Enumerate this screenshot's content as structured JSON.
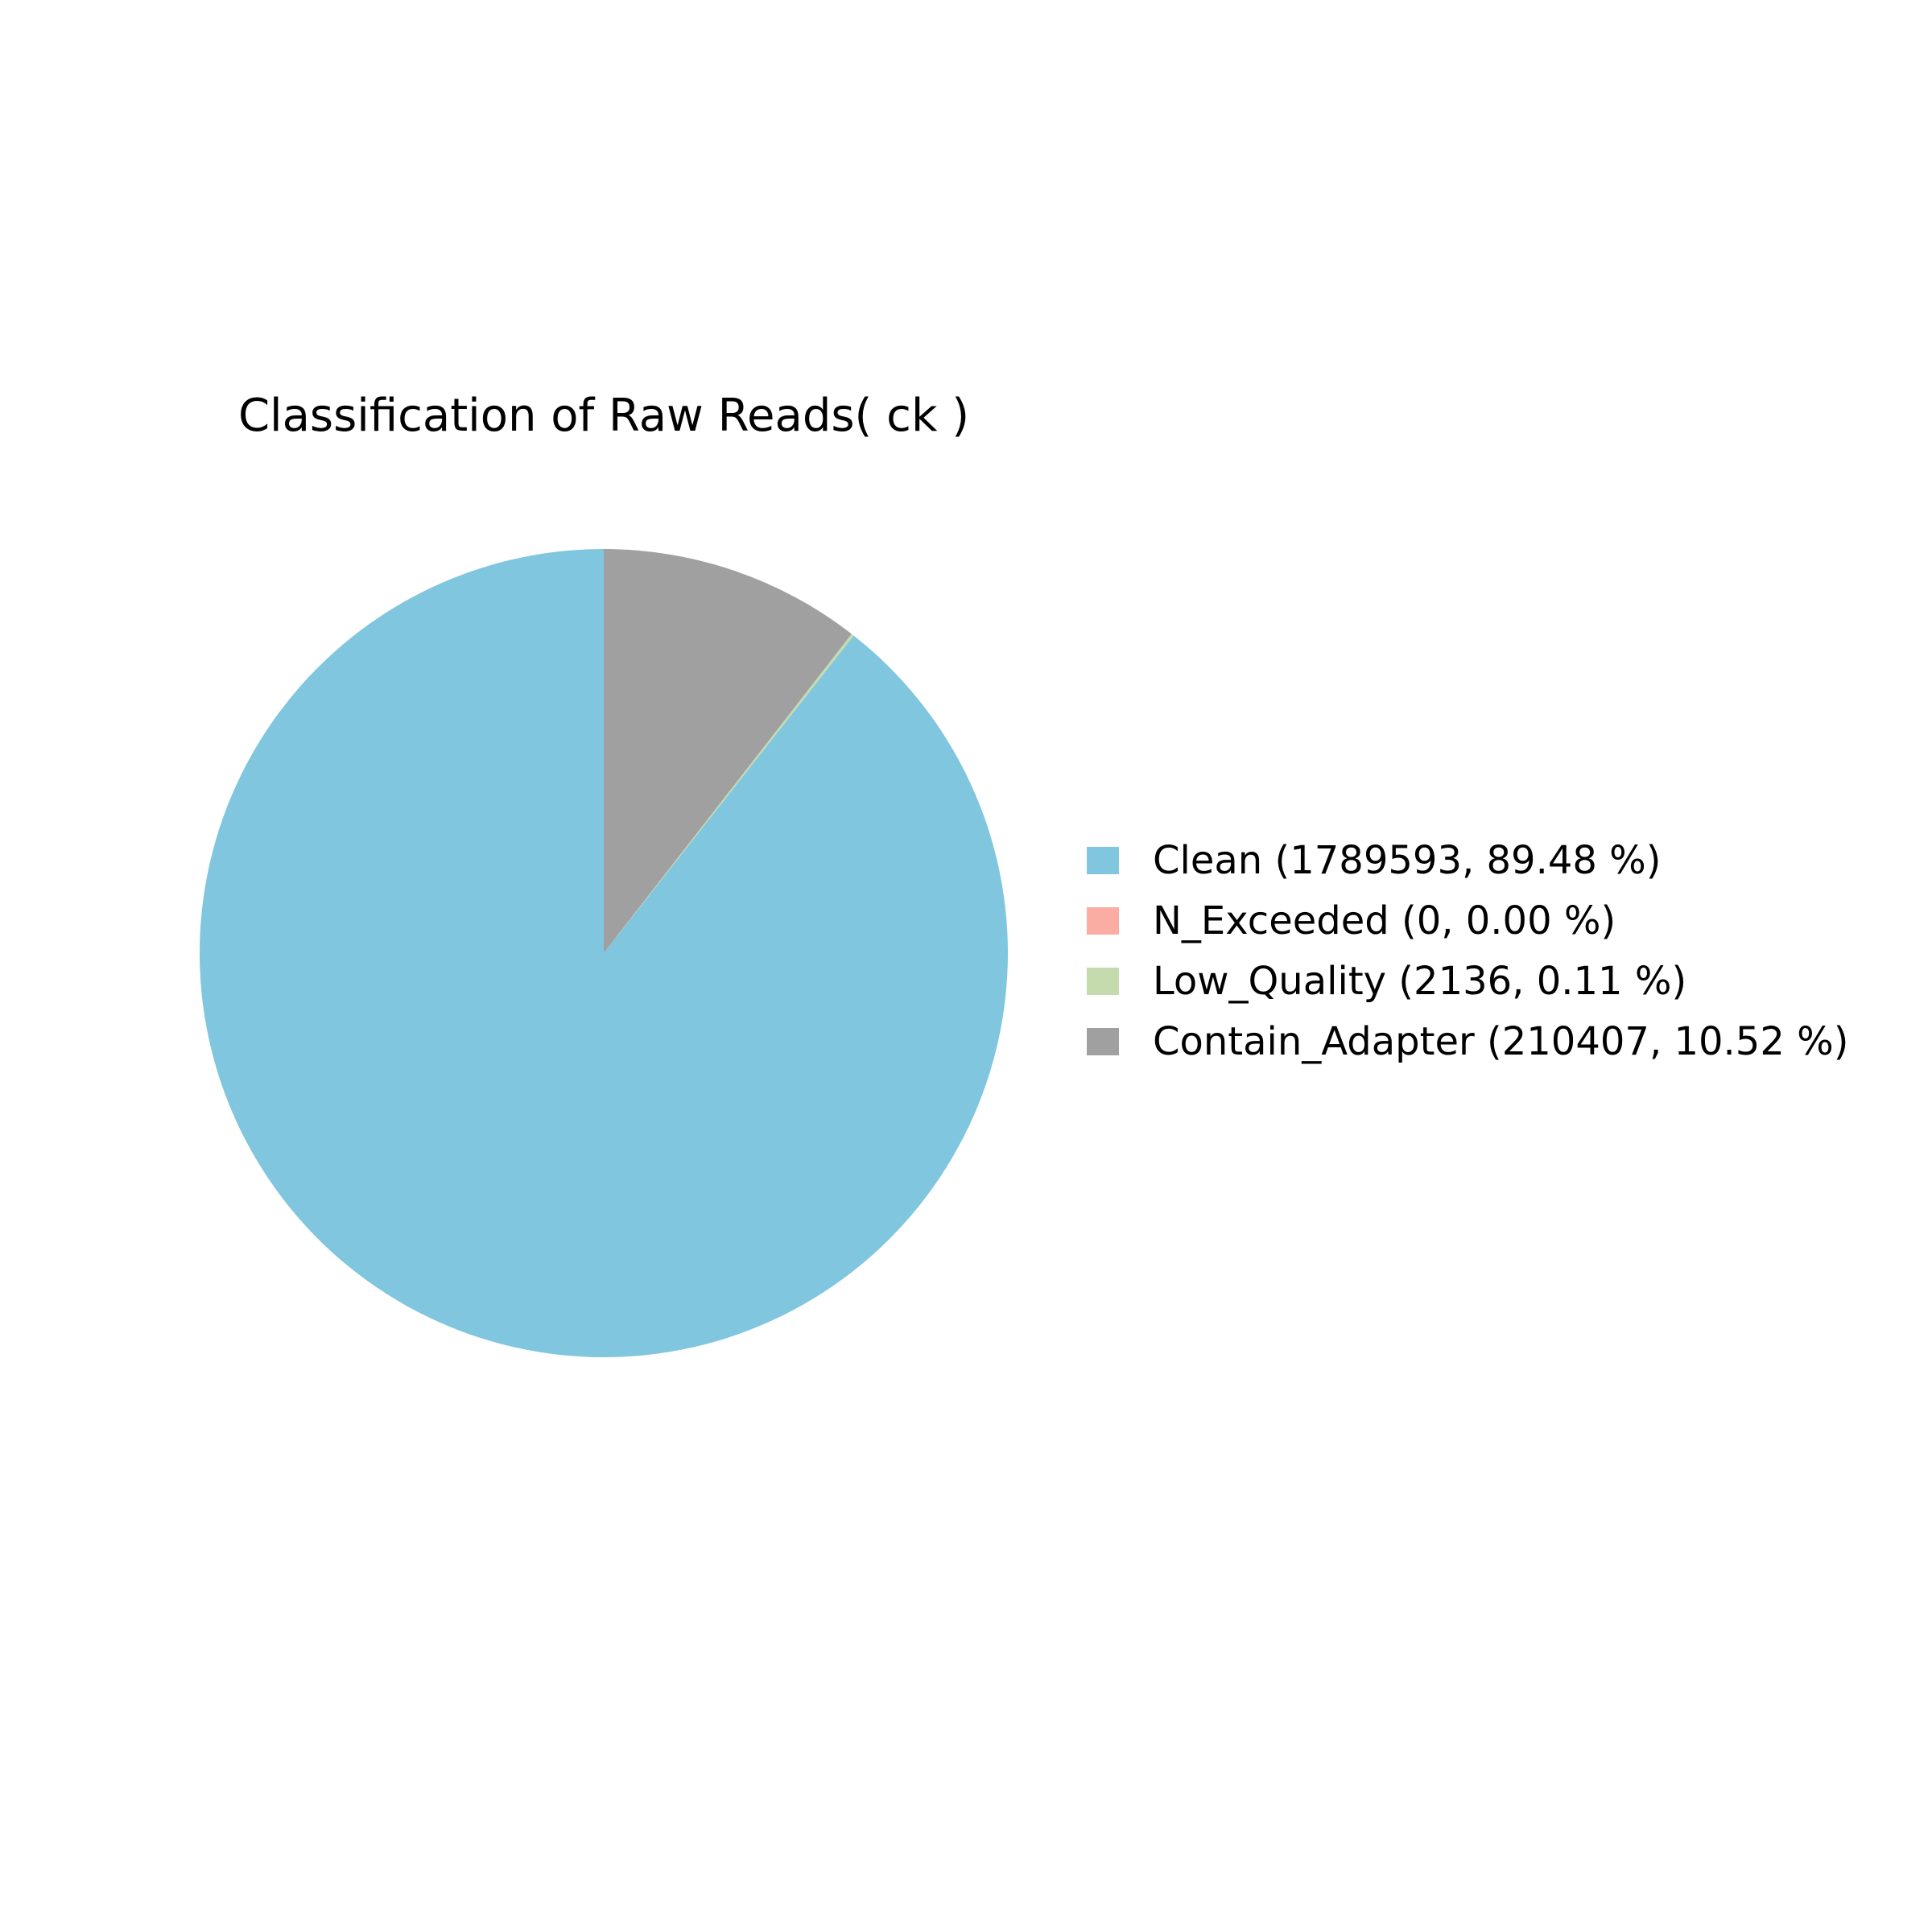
{
  "chart_data": {
    "type": "pie",
    "title": "Classification of Raw Reads( ck )",
    "start": "top",
    "direction": "counterclockwise",
    "legend_position": "right",
    "slices": [
      {
        "name": "Clean",
        "value": 1789593,
        "percent": 89.48,
        "color": "#7FC6DE",
        "legend_label": "Clean (1789593, 89.48 %)"
      },
      {
        "name": "N_Exceeded",
        "value": 0,
        "percent": 0.0,
        "color": "#FBADA3",
        "legend_label": "N_Exceeded (0, 0.00 %)"
      },
      {
        "name": "Low_Quality",
        "value": 2136,
        "percent": 0.11,
        "color": "#C5DBAE",
        "legend_label": "Low_Quality (2136, 0.11 %)"
      },
      {
        "name": "Contain_Adapter",
        "value": 210407,
        "percent": 10.52,
        "color": "#A0A0A0",
        "legend_label": "Contain_Adapter (210407, 10.52 %)"
      }
    ]
  }
}
